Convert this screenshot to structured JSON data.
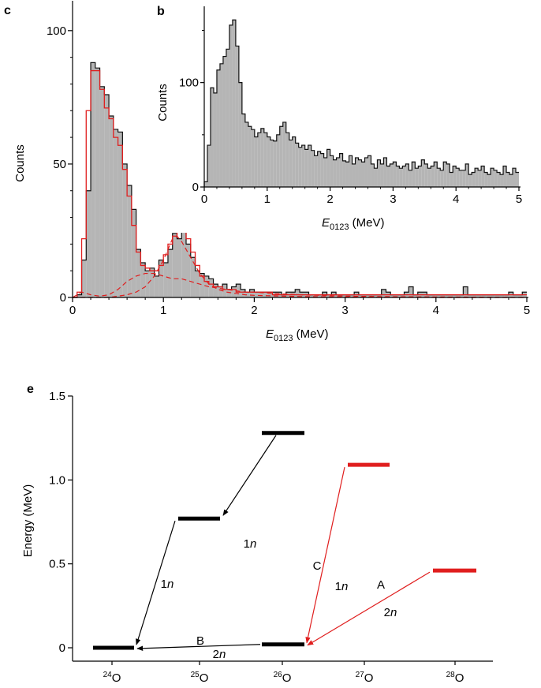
{
  "colors": {
    "bar_fill": "#b5b5b5",
    "outline": "#111111",
    "fit_red": "#e01e1e",
    "level_black": "#000000",
    "level_red": "#e01e1e"
  },
  "chart_data": [
    {
      "id": "c",
      "panel_label": "c",
      "type": "bar",
      "xlabel": "E",
      "xlabel_sub": "0123",
      "xlabel_unit": " (MeV)",
      "ylabel": "Counts",
      "xlim": [
        0,
        5
      ],
      "ylim": [
        0,
        110
      ],
      "xticks": [
        "0",
        "1",
        "2",
        "3",
        "4",
        "5"
      ],
      "yticks": [
        "0",
        "50",
        "100"
      ],
      "bin_width": 0.05,
      "values": [
        0,
        1,
        14,
        40,
        88,
        86,
        79,
        76,
        68,
        63,
        62,
        50,
        42,
        33,
        18,
        13,
        10,
        11,
        8,
        14,
        13,
        18,
        24,
        22,
        30,
        20,
        15,
        10,
        9,
        8,
        7,
        5,
        4,
        5,
        3,
        4,
        5,
        3,
        2,
        3,
        2,
        2,
        2,
        2,
        2,
        2,
        1,
        2,
        2,
        3,
        2,
        2,
        1,
        1,
        1,
        2,
        1,
        2,
        1,
        1,
        1,
        1,
        2,
        1,
        1,
        1,
        1,
        1,
        3,
        2,
        1,
        1,
        1,
        2,
        4,
        1,
        2,
        2,
        1,
        1,
        1,
        1,
        1,
        1,
        1,
        1,
        4,
        1,
        1,
        1,
        1,
        1,
        1,
        1,
        1,
        1,
        2,
        1,
        1,
        2
      ],
      "series": [
        {
          "name": "",
          "style": "solid",
          "values": [
            0,
            2,
            22,
            70,
            85,
            85,
            78,
            71,
            67,
            60,
            57,
            48,
            38,
            27,
            17,
            12,
            11,
            10,
            10,
            12,
            16,
            20,
            23,
            25,
            25,
            22,
            17,
            12,
            8,
            6,
            5,
            4,
            4,
            3,
            3,
            3,
            2,
            2,
            2,
            2,
            2,
            2,
            2,
            2,
            1,
            1,
            1,
            1,
            1,
            1,
            1,
            1,
            1,
            1,
            1,
            1,
            1,
            1,
            1,
            1,
            1,
            1,
            1,
            1,
            1,
            1,
            1,
            1,
            1,
            1,
            1,
            1,
            1,
            1,
            1,
            1,
            1,
            1,
            1,
            1,
            1,
            1,
            1,
            1,
            1,
            1,
            1,
            1,
            1,
            1,
            1,
            1,
            1,
            1,
            1,
            1,
            1,
            1,
            1,
            1
          ]
        },
        {
          "name": "",
          "style": "dashed",
          "type": "line",
          "x": [
            0,
            0.1,
            0.2,
            0.3,
            0.4,
            0.5,
            0.6,
            0.7,
            0.8,
            0.9,
            1.0,
            1.1,
            1.2,
            1.3,
            1.4,
            1.5,
            1.6,
            1.7,
            1.8,
            1.9,
            2.0,
            2.2,
            2.5,
            3.0,
            3.5,
            4.0,
            4.5,
            5.0
          ],
          "values": [
            0,
            2,
            1,
            0.5,
            1,
            3,
            6,
            8,
            9,
            9,
            8,
            7,
            7,
            6,
            5,
            4,
            3.5,
            3,
            2.5,
            2,
            2,
            1.5,
            1,
            0.5,
            0.3,
            0.2,
            0.1,
            0
          ]
        },
        {
          "name": "",
          "style": "dashed",
          "type": "line",
          "x": [
            0,
            0.2,
            0.4,
            0.6,
            0.7,
            0.8,
            0.9,
            1.0,
            1.05,
            1.1,
            1.15,
            1.2,
            1.3,
            1.4,
            1.5,
            1.6,
            1.7,
            1.8,
            1.9,
            2.0,
            2.3,
            2.6,
            3.0,
            4.0,
            5.0
          ],
          "values": [
            0,
            0,
            0,
            1,
            2,
            4,
            8,
            14,
            18,
            22,
            23,
            21,
            15,
            9,
            5,
            3,
            2,
            1.5,
            1,
            0.8,
            0.5,
            0.3,
            0.2,
            0,
            0
          ]
        }
      ]
    },
    {
      "id": "b",
      "panel_label": "b",
      "type": "bar",
      "xlabel": "E",
      "xlabel_sub": "0123",
      "xlabel_unit": " (MeV)",
      "ylabel": "Counts",
      "xlim": [
        0,
        5
      ],
      "ylim": [
        0,
        170
      ],
      "xticks": [
        "0",
        "1",
        "2",
        "3",
        "4",
        "5"
      ],
      "yticks": [
        "0",
        "100"
      ],
      "bin_width": 0.05,
      "values": [
        5,
        40,
        95,
        90,
        112,
        118,
        125,
        132,
        155,
        160,
        135,
        100,
        70,
        62,
        58,
        55,
        48,
        52,
        56,
        52,
        48,
        45,
        44,
        50,
        58,
        62,
        52,
        45,
        48,
        42,
        38,
        40,
        36,
        40,
        35,
        30,
        34,
        32,
        28,
        36,
        30,
        26,
        28,
        32,
        25,
        24,
        30,
        22,
        28,
        26,
        24,
        28,
        30,
        22,
        18,
        26,
        22,
        28,
        20,
        22,
        24,
        20,
        18,
        20,
        22,
        16,
        24,
        18,
        20,
        26,
        22,
        18,
        20,
        24,
        18,
        16,
        24,
        22,
        14,
        20,
        18,
        16,
        16,
        22,
        12,
        14,
        18,
        16,
        20,
        14,
        12,
        18,
        16,
        14,
        12,
        20,
        14,
        12,
        18,
        14
      ]
    },
    {
      "id": "e",
      "panel_label": "e",
      "type": "diagram",
      "ylabel": "Energy (MeV)",
      "ylim": [
        -0.1,
        1.5
      ],
      "yticks": [
        "0",
        "0.5",
        "1.0",
        "1.5"
      ],
      "ytick_values": [
        0,
        0.5,
        1.0,
        1.5
      ],
      "categories": [
        {
          "mass": "24",
          "element": "O"
        },
        {
          "mass": "25",
          "element": "O"
        },
        {
          "mass": "26",
          "element": "O"
        },
        {
          "mass": "27",
          "element": "O"
        },
        {
          "mass": "28",
          "element": "O"
        }
      ],
      "levels": [
        {
          "isotope": 0,
          "energy": 0.0,
          "color": "black"
        },
        {
          "isotope": 1,
          "energy": 0.77,
          "color": "black"
        },
        {
          "isotope": 1,
          "energy": 1.28,
          "color": "black"
        },
        {
          "isotope": 2,
          "energy": 0.02,
          "color": "black"
        },
        {
          "isotope": 3,
          "energy": 1.09,
          "color": "red"
        },
        {
          "isotope": 4,
          "energy": 0.46,
          "color": "red"
        }
      ],
      "transitions": [
        {
          "from_level": 2,
          "to_level": 1,
          "color": "black",
          "label": "",
          "emission": "1",
          "emission_particle": "n"
        },
        {
          "from_level": 1,
          "to_level": 0,
          "color": "black",
          "label": "",
          "emission": "1",
          "emission_particle": "n"
        },
        {
          "from_level": 3,
          "to_level": 0,
          "color": "black",
          "label": "B",
          "emission": "2",
          "emission_particle": "n"
        },
        {
          "from_level": 4,
          "to_level": 3,
          "color": "red",
          "label": "C",
          "emission": "1",
          "emission_particle": "n"
        },
        {
          "from_level": 5,
          "to_level": 3,
          "color": "red",
          "label": "A",
          "emission": "2",
          "emission_particle": "n"
        }
      ]
    }
  ]
}
